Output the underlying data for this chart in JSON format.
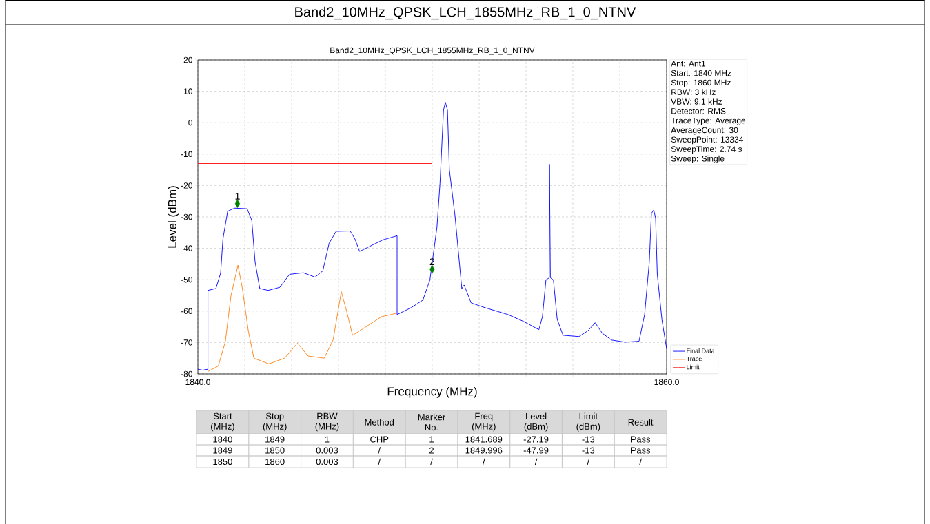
{
  "chart_data": {
    "type": "line",
    "title": "Band2_10MHz_QPSK_LCH_1855MHz_RB_1_0_NTNV",
    "subtitle": "Band2_10MHz_QPSK_LCH_1855MHz_RB_1_0_NTNV",
    "xlabel": "Frequency (MHz)",
    "ylabel": "Level (dBm)",
    "xlim": [
      1840,
      1860
    ],
    "ylim": [
      -80,
      20
    ],
    "xticks": [
      {
        "value": 1840,
        "label": "1840.0"
      },
      {
        "value": 1842,
        "label": null
      },
      {
        "value": 1844,
        "label": null
      },
      {
        "value": 1846,
        "label": null
      },
      {
        "value": 1848,
        "label": null
      },
      {
        "value": 1850,
        "label": null
      },
      {
        "value": 1852,
        "label": null
      },
      {
        "value": 1854,
        "label": null
      },
      {
        "value": 1856,
        "label": null
      },
      {
        "value": 1858,
        "label": null
      },
      {
        "value": 1860,
        "label": "1860.0"
      }
    ],
    "yticks": [
      -80,
      -70,
      -60,
      -50,
      -40,
      -30,
      -20,
      -10,
      0,
      10,
      20
    ],
    "grid": true,
    "legend": "bottom right",
    "line_style": "solid",
    "series": [
      {
        "name": "Final Data",
        "color": "#0000ff",
        "x": [
          1840,
          1840.2,
          1840.43,
          1840.43,
          1840.77,
          1840.97,
          1841.07,
          1841.27,
          1841.56,
          1842.1,
          1842.3,
          1842.44,
          1842.64,
          1843.0,
          1843.5,
          1843.91,
          1844.5,
          1845.0,
          1845.33,
          1845.6,
          1845.9,
          1846.5,
          1846.7,
          1846.9,
          1847.3,
          1847.9,
          1848.5,
          1848.5,
          1849.1,
          1849.6,
          1849.9,
          1850.2,
          1850.33,
          1850.48,
          1850.56,
          1850.65,
          1850.73,
          1850.97,
          1851.26,
          1851.36,
          1851.66,
          1852.25,
          1853.23,
          1853.9,
          1854.55,
          1854.7,
          1854.85,
          1854.99,
          1855.0,
          1855.04,
          1855.17,
          1855.33,
          1855.58,
          1856.26,
          1856.65,
          1856.95,
          1857.25,
          1857.64,
          1858.23,
          1858.82,
          1859.06,
          1859.26,
          1859.35,
          1859.45,
          1859.53,
          1859.6,
          1859.8,
          1860
        ],
        "values": [
          -78.5,
          -78.8,
          -78.5,
          -53.4,
          -52.8,
          -47.9,
          -37,
          -28.2,
          -27.2,
          -27.4,
          -31.1,
          -44.3,
          -52.8,
          -53.4,
          -52.4,
          -48.3,
          -47.8,
          -49.2,
          -47.2,
          -38.4,
          -34.6,
          -34.5,
          -37,
          -41,
          -39.5,
          -37.3,
          -36,
          -61.1,
          -58.9,
          -56.5,
          -50.1,
          -33.3,
          -19.4,
          4,
          6.5,
          4,
          -15,
          -29.6,
          -52.8,
          -51.7,
          -57.4,
          -58.9,
          -61.1,
          -63.3,
          -65.9,
          -61.8,
          -50.1,
          -49.4,
          -13.2,
          -49.4,
          -50.1,
          -62.6,
          -67.7,
          -68.1,
          -66.2,
          -63.7,
          -67,
          -69.2,
          -69.9,
          -69.6,
          -61.1,
          -44.3,
          -28.9,
          -27.8,
          -30.4,
          -48.2,
          -62.8,
          -72
        ]
      },
      {
        "name": "Trace",
        "color": "#ff7f0e",
        "x": [
          1840.43,
          1840.87,
          1841.17,
          1841.41,
          1841.71,
          1841.9,
          1842.15,
          1842.39,
          1843.03,
          1843.7,
          1844.25,
          1844.7,
          1845.39,
          1845.77,
          1846.12,
          1846.36,
          1846.6,
          1847.15,
          1847.83,
          1848.47
        ],
        "values": [
          -79.2,
          -77.5,
          -69.8,
          -55.2,
          -45.4,
          -52.8,
          -66.2,
          -75,
          -76.8,
          -75,
          -70.2,
          -74.3,
          -75,
          -69.2,
          -53.8,
          -60.4,
          -67.7,
          -65.1,
          -61.8,
          -60.7
        ]
      },
      {
        "name": "Limit",
        "color": "#ff0000",
        "x": [
          1840,
          1850
        ],
        "values": [
          -13,
          -13
        ]
      },
      {
        "type": "scatter",
        "marker": "diamond",
        "color": "#008000",
        "x": [
          1841.689,
          1849.996
        ],
        "values": [
          -25.8,
          -46.7
        ]
      }
    ],
    "annotations": [
      {
        "text": "1",
        "x": 1841.689,
        "y": -25.8
      },
      {
        "text": "2",
        "x": 1849.996,
        "y": -46.7
      },
      "Ant: Ant1",
      "Start: 1840 MHz",
      "Stop: 1860 MHz",
      "RBW: 3 kHz",
      "VBW: 9.1 kHz",
      "Detector: RMS",
      "TraceType: Average",
      "AverageCount: 30",
      "SweepPoint: 13334",
      "SweepTime: 2.74 s",
      "Sweep: Single",
      "Start (MHz)",
      "Stop (MHz)",
      "RBW (MHz)",
      "Method",
      "Marker No.",
      "Freq (MHz)",
      "Level (dBm)",
      "Limit (dBm)",
      "Result",
      "1840",
      "1849",
      "1",
      "CHP",
      "1",
      "1841.689",
      "-27.19",
      "-13",
      "Pass",
      "1849",
      "1850",
      "0.003",
      "/",
      "2",
      "1849.996",
      "-47.99",
      "-13",
      "Pass",
      "1850",
      "1860",
      "0.003",
      "/",
      "/",
      "/",
      "/",
      "/",
      "/"
    ]
  }
}
